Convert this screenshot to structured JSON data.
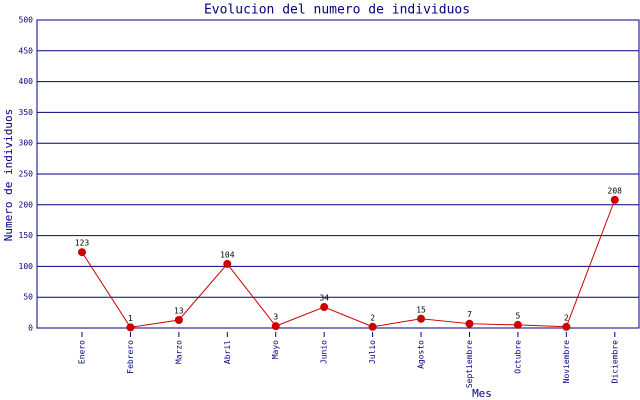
{
  "chart_data": {
    "type": "line",
    "title": "Evolucion del numero de individuos",
    "x_label": "Mes",
    "y_label": "Numero de individuos",
    "categories": [
      "Enero",
      "Febrero",
      "Marzo",
      "Abril",
      "Mayo",
      "Junio",
      "Julio",
      "Agosto",
      "Septiembre",
      "Octubre",
      "Noviembre",
      "Diciembre"
    ],
    "values": [
      123,
      1,
      13,
      104,
      3,
      34,
      2,
      15,
      7,
      5,
      2,
      208
    ],
    "color": "#cc0000",
    "ylim": [
      0,
      500
    ],
    "yticks": [
      0,
      50,
      100,
      150,
      200,
      250,
      300,
      350,
      400,
      450,
      500
    ],
    "grid": true
  }
}
